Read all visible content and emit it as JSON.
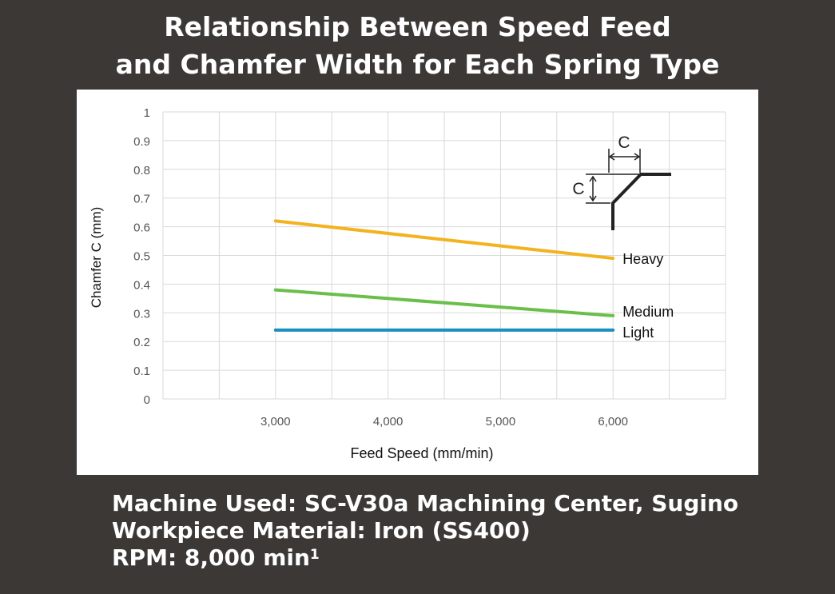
{
  "title_line1": "Relationship Between Speed Feed",
  "title_line2": "and Chamfer Width for Each Spring Type",
  "notes": {
    "machine": "Machine Used: SC-V30a Machining Center, Sugino",
    "material": "Workpiece Material: Iron (SS400)",
    "rpm_text": "RPM: 8,000 min",
    "rpm_superscript": "1"
  },
  "inset_labels": {
    "top": "C",
    "left": "C"
  },
  "chart_data": {
    "type": "line",
    "xlabel": "Feed Speed (mm/min)",
    "ylabel": "Chamfer C (mm)",
    "x": [
      3000,
      6000
    ],
    "xticks": [
      3000,
      4000,
      5000,
      6000
    ],
    "xtick_labels": [
      "3,000",
      "4,000",
      "5,000",
      "6,000"
    ],
    "xlim": [
      2000,
      7000
    ],
    "ylim": [
      0,
      1
    ],
    "yticks": [
      0,
      0.1,
      0.2,
      0.3,
      0.4,
      0.5,
      0.6,
      0.7,
      0.8,
      0.9,
      1
    ],
    "ytick_labels": [
      "0",
      "0.1",
      "0.2",
      "0.3",
      "0.4",
      "0.5",
      "0.6",
      "0.7",
      "0.8",
      "0.9",
      "1"
    ],
    "grid": true,
    "series": [
      {
        "name": "Heavy",
        "values": [
          0.62,
          0.49
        ],
        "color": "#f2b31f"
      },
      {
        "name": "Medium",
        "values": [
          0.38,
          0.29
        ],
        "color": "#6abf4b"
      },
      {
        "name": "Light",
        "values": [
          0.24,
          0.24
        ],
        "color": "#1b8fbf"
      }
    ]
  }
}
